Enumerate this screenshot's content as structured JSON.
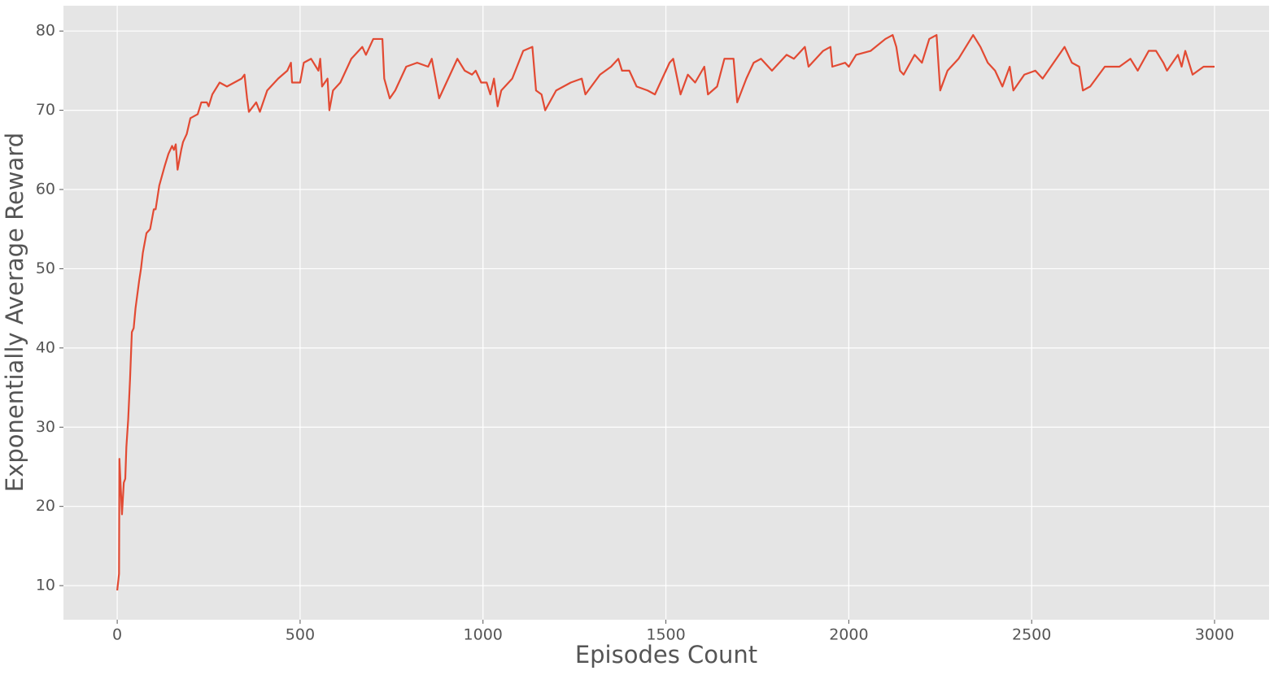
{
  "chart_data": {
    "type": "line",
    "xlabel": "Episodes Count",
    "ylabel": "Exponentially Average Reward",
    "x": [
      0,
      5,
      6,
      10,
      13,
      18,
      22,
      25,
      30,
      35,
      40,
      45,
      50,
      60,
      65,
      70,
      80,
      90,
      100,
      105,
      115,
      130,
      140,
      150,
      155,
      160,
      165,
      175,
      180,
      190,
      200,
      220,
      230,
      245,
      250,
      260,
      280,
      300,
      320,
      340,
      348,
      355,
      360,
      380,
      390,
      410,
      440,
      465,
      475,
      478,
      500,
      510,
      530,
      550,
      555,
      560,
      575,
      580,
      590,
      610,
      640,
      660,
      670,
      680,
      700,
      725,
      730,
      745,
      760,
      790,
      820,
      850,
      860,
      880,
      900,
      930,
      950,
      970,
      980,
      995,
      1010,
      1020,
      1030,
      1040,
      1050,
      1080,
      1110,
      1135,
      1145,
      1160,
      1170,
      1200,
      1240,
      1270,
      1280,
      1320,
      1350,
      1370,
      1380,
      1400,
      1420,
      1450,
      1470,
      1510,
      1520,
      1540,
      1560,
      1580,
      1605,
      1615,
      1640,
      1660,
      1685,
      1695,
      1720,
      1740,
      1760,
      1790,
      1830,
      1850,
      1880,
      1890,
      1930,
      1950,
      1955,
      1990,
      2000,
      2020,
      2060,
      2100,
      2120,
      2130,
      2140,
      2150,
      2180,
      2200,
      2220,
      2240,
      2250,
      2270,
      2300,
      2340,
      2360,
      2380,
      2400,
      2420,
      2440,
      2450,
      2480,
      2510,
      2530,
      2560,
      2590,
      2610,
      2630,
      2640,
      2660,
      2700,
      2740,
      2770,
      2790,
      2820,
      2840,
      2860,
      2870,
      2900,
      2910,
      2920,
      2940,
      2970,
      3000
    ],
    "series": [
      {
        "color": "#e24a33",
        "values": [
          9.4,
          11.5,
          26,
          22,
          19,
          23,
          23.5,
          27.5,
          31,
          36,
          42,
          42.5,
          45,
          48.5,
          50,
          52,
          54.5,
          55,
          57.5,
          57.5,
          60.5,
          63,
          64.5,
          65.5,
          65,
          65.7,
          62.5,
          65,
          66,
          67,
          69,
          69.5,
          71,
          71,
          70.5,
          72,
          73.5,
          73,
          73.5,
          74,
          74.5,
          71.5,
          69.8,
          71,
          69.8,
          72.5,
          74,
          75,
          76,
          73.5,
          73.5,
          76,
          76.5,
          75,
          76.5,
          73,
          74,
          70,
          72.5,
          73.5,
          76.5,
          77.5,
          78,
          77,
          79,
          79,
          74,
          71.5,
          72.5,
          75.5,
          76,
          75.5,
          76.5,
          71.5,
          73.5,
          76.5,
          75,
          74.5,
          75,
          73.5,
          73.5,
          72,
          74,
          70.5,
          72.5,
          74,
          77.5,
          78,
          72.5,
          72,
          70,
          72.5,
          73.5,
          74,
          72,
          74.5,
          75.5,
          76.5,
          75,
          75,
          73,
          72.5,
          72,
          76,
          76.5,
          72,
          74.5,
          73.5,
          75.5,
          72,
          73,
          76.5,
          76.5,
          71,
          74,
          76,
          76.5,
          75,
          77,
          76.5,
          78,
          75.5,
          77.5,
          78,
          75.5,
          76,
          75.5,
          77,
          77.5,
          79,
          79.5,
          78,
          75,
          74.5,
          77,
          76,
          79,
          79.5,
          72.5,
          75,
          76.5,
          79.5,
          78,
          76,
          75,
          73,
          75.5,
          72.5,
          74.5,
          75,
          74,
          76,
          78,
          76,
          75.5,
          72.5,
          73,
          75.5,
          75.5,
          76.5,
          75,
          77.5,
          77.5,
          76,
          75,
          77,
          75.5,
          77.5,
          74.5,
          75.5,
          75.5
        ]
      }
    ],
    "xlim": [
      -147,
      3149
    ],
    "ylim": [
      5.7,
      83.2
    ],
    "xticks": [
      0,
      500,
      1000,
      1500,
      2000,
      2500,
      3000
    ],
    "yticks": [
      10,
      20,
      30,
      40,
      50,
      60,
      70,
      80
    ],
    "grid": true
  }
}
